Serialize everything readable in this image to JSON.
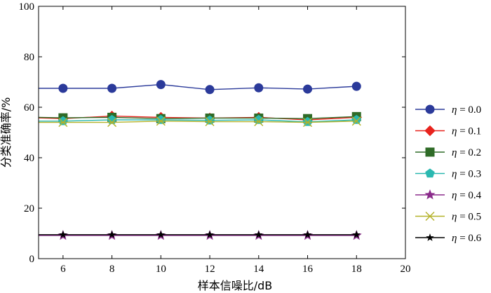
{
  "chart_data": {
    "type": "line",
    "xlabel": "样本信噪比/dB",
    "ylabel": "分类准确率/%",
    "xlim": [
      5,
      20
    ],
    "ylim": [
      0,
      100
    ],
    "xticks": [
      6,
      8,
      10,
      12,
      14,
      16,
      18,
      20
    ],
    "yticks": [
      0,
      20,
      40,
      60,
      80,
      100
    ],
    "grid": false,
    "legend_position": "right",
    "x": [
      5,
      6,
      8,
      10,
      12,
      14,
      16,
      18
    ],
    "series": [
      {
        "name": "η = 0.0",
        "legend_text": "= 0.0",
        "color": "#2b3a9a",
        "marker": "circle",
        "values": [
          67.5,
          67.5,
          67.5,
          69,
          67,
          67.7,
          67.2,
          68.3
        ]
      },
      {
        "name": "η = 0.1",
        "legend_text": "= 0.1",
        "color": "#e8231d",
        "marker": "diamond",
        "values": [
          55.8,
          55.5,
          56.5,
          56,
          55.7,
          56,
          55,
          56
        ]
      },
      {
        "name": "η = 0.2",
        "legend_text": "= 0.2",
        "color": "#2f6b27",
        "marker": "square",
        "values": [
          56,
          55.8,
          56,
          55.5,
          55.7,
          55.7,
          55.5,
          56.3
        ]
      },
      {
        "name": "η = 0.3",
        "legend_text": "= 0.3",
        "color": "#2ab8b0",
        "marker": "pentagon",
        "values": [
          54.5,
          54.5,
          55,
          55,
          54.8,
          55,
          54.2,
          55
        ]
      },
      {
        "name": "η = 0.4",
        "legend_text": "= 0.4",
        "color": "#8b2b8b",
        "marker": "star",
        "values": [
          9.2,
          9.2,
          9.2,
          9.2,
          9.2,
          9.2,
          9.2,
          9.2
        ]
      },
      {
        "name": "η = 0.5",
        "legend_text": "= 0.5",
        "color": "#b5b22a",
        "marker": "x",
        "values": [
          54,
          54,
          54,
          54.5,
          54.3,
          54.3,
          54,
          54.5
        ]
      },
      {
        "name": "η = 0.6",
        "legend_text": "= 0.6",
        "color": "#000000",
        "marker": "star-small",
        "values": [
          9.5,
          9.5,
          9.5,
          9.5,
          9.5,
          9.5,
          9.5,
          9.5
        ]
      }
    ]
  }
}
